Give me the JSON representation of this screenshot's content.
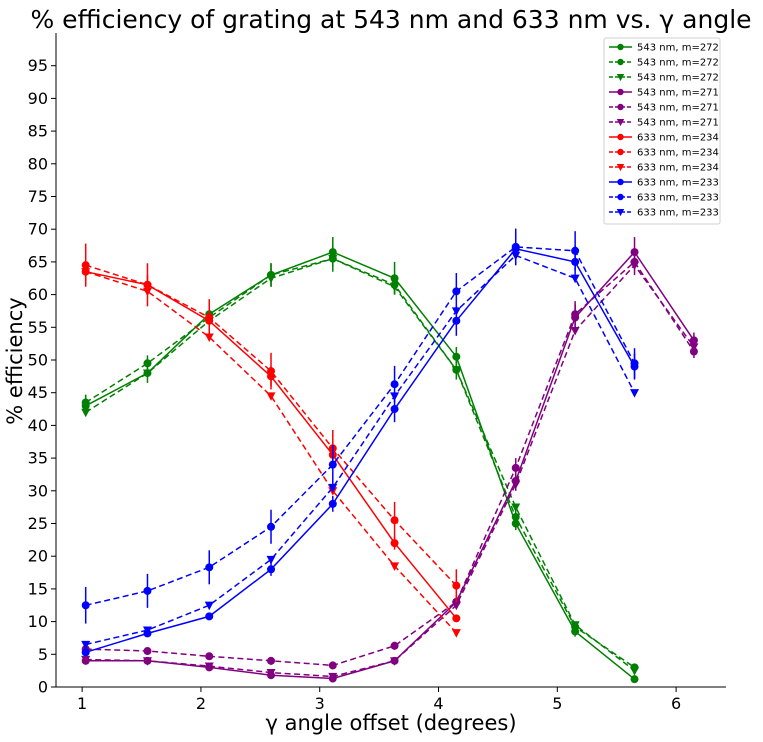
{
  "chart_data": {
    "type": "line",
    "title": "% efficiency  of grating at 543 nm and 633 nm vs. γ angle",
    "xlabel": "γ angle offset (degrees)",
    "ylabel": "% efficiency",
    "xlim": [
      0.78,
      6.42
    ],
    "ylim": [
      0,
      100
    ],
    "xticks": [
      1,
      2,
      3,
      4,
      5,
      6
    ],
    "yticks": [
      0,
      5,
      10,
      15,
      20,
      25,
      30,
      35,
      40,
      45,
      50,
      55,
      60,
      65,
      70,
      75,
      80,
      85,
      90,
      95
    ],
    "grid": false,
    "legend_position": "top-right",
    "series": [
      {
        "name": "543 nm, m=272",
        "color": "#008000",
        "dash": "solid",
        "marker": "circle",
        "x": [
          1.03,
          1.55,
          2.07,
          2.59,
          3.11,
          3.63,
          4.15,
          4.65,
          5.15,
          5.65
        ],
        "y": [
          43,
          48,
          57,
          63,
          66.5,
          62.5,
          50.5,
          25,
          8.5,
          1.2
        ],
        "err": [
          1.5,
          1.5,
          1.5,
          1.8,
          2.3,
          2.5,
          1.5,
          1,
          0.8,
          0.5
        ]
      },
      {
        "name": "543 nm, m=272",
        "color": "#008000",
        "dash": "dashed",
        "marker": "circle",
        "x": [
          1.03,
          1.55,
          2.07,
          2.59,
          3.11,
          3.63,
          4.15,
          4.65,
          5.15,
          5.65
        ],
        "y": [
          43.5,
          49.5,
          56.5,
          63,
          65.5,
          61.5,
          48.5,
          26,
          9.2,
          3
        ],
        "err": [
          1.2,
          1.2,
          1.5,
          1.8,
          2,
          1.5,
          1.5,
          1,
          0.8,
          0.5
        ]
      },
      {
        "name": "543 nm, m=272",
        "color": "#008000",
        "dash": "dashed",
        "marker": "triangle",
        "x": [
          1.03,
          1.55,
          2.07,
          2.59,
          3.11,
          3.63,
          4.15,
          4.65,
          5.15,
          5.65
        ],
        "y": [
          42,
          48,
          56,
          62.5,
          65.5,
          61.2,
          48.5,
          27.5,
          9.5,
          2.5
        ],
        "err": [
          0,
          0,
          0,
          0,
          0,
          0,
          0,
          0,
          0,
          0
        ]
      },
      {
        "name": "543 nm, m=271",
        "color": "#800080",
        "dash": "solid",
        "marker": "circle",
        "x": [
          1.03,
          1.55,
          2.07,
          2.59,
          3.11,
          3.63,
          4.15,
          4.65,
          5.15,
          5.65,
          6.15
        ],
        "y": [
          4,
          4,
          3,
          1.8,
          1.3,
          4,
          13,
          31.5,
          56.5,
          66.5,
          53
        ],
        "err": [
          0.5,
          0.5,
          0.5,
          0.5,
          0.5,
          0.5,
          1,
          1.5,
          2,
          2.3,
          1.2
        ]
      },
      {
        "name": "543 nm, m=271",
        "color": "#800080",
        "dash": "dashed",
        "marker": "circle",
        "x": [
          1.03,
          1.55,
          2.07,
          2.59,
          3.11,
          3.63,
          4.15,
          4.65,
          5.15,
          5.65,
          6.15
        ],
        "y": [
          5.8,
          5.5,
          4.7,
          4,
          3.3,
          6.3,
          13,
          33.5,
          57,
          65,
          51.3
        ],
        "err": [
          0.5,
          0.5,
          0.5,
          0.6,
          0.6,
          0.6,
          1,
          1.5,
          2,
          2,
          1
        ]
      },
      {
        "name": "543 nm, m=271",
        "color": "#800080",
        "dash": "dashed",
        "marker": "triangle",
        "x": [
          1.03,
          1.55,
          2.07,
          2.59,
          3.11,
          3.63,
          4.15,
          4.65,
          5.15,
          5.65,
          6.15
        ],
        "y": [
          4.2,
          4,
          3.2,
          2.2,
          1.6,
          4,
          12.5,
          31,
          54.5,
          64.5,
          52
        ],
        "err": [
          0,
          0,
          0,
          0,
          0,
          0,
          0,
          0,
          0,
          0,
          0
        ]
      },
      {
        "name": "633 nm, m=234",
        "color": "#ff0000",
        "dash": "solid",
        "marker": "circle",
        "x": [
          1.03,
          1.55,
          2.07,
          2.59,
          3.11,
          3.63,
          4.15
        ],
        "y": [
          63.5,
          61.5,
          56,
          47.5,
          35.5,
          22,
          10.5
        ],
        "err": [
          1.5,
          1.5,
          1.5,
          1.5,
          1.5,
          1,
          0.5
        ]
      },
      {
        "name": "633 nm, m=234",
        "color": "#ff0000",
        "dash": "dashed",
        "marker": "circle",
        "x": [
          1.03,
          1.55,
          2.07,
          2.59,
          3.11,
          3.63,
          4.15
        ],
        "y": [
          64.5,
          61.5,
          56.5,
          48.3,
          36.5,
          25.5,
          15.5
        ],
        "err": [
          3.3,
          3.3,
          2.8,
          2.8,
          2.8,
          2.8,
          2.5
        ]
      },
      {
        "name": "633 nm, m=234",
        "color": "#ff0000",
        "dash": "dashed",
        "marker": "triangle",
        "x": [
          1.03,
          1.55,
          2.07,
          2.59,
          3.11,
          3.63,
          4.15
        ],
        "y": [
          63.5,
          60.5,
          53.5,
          44.5,
          30,
          18.5,
          8.3
        ],
        "err": [
          0,
          0,
          0,
          0,
          0,
          0,
          0
        ]
      },
      {
        "name": "633 nm, m=233",
        "color": "#0000ff",
        "dash": "solid",
        "marker": "circle",
        "x": [
          1.03,
          1.55,
          2.07,
          2.59,
          3.11,
          3.63,
          4.15,
          4.65,
          5.15,
          5.65
        ],
        "y": [
          5.3,
          8.2,
          10.8,
          18,
          28,
          42.5,
          56,
          67,
          65,
          49
        ],
        "err": [
          0.5,
          0.5,
          0.5,
          1,
          1.2,
          2,
          2.3,
          2.5,
          2.5,
          2
        ]
      },
      {
        "name": "633 nm, m=233",
        "color": "#0000ff",
        "dash": "dashed",
        "marker": "circle",
        "x": [
          1.03,
          1.55,
          2.07,
          2.59,
          3.11,
          3.63,
          4.15,
          4.65,
          5.15,
          5.65
        ],
        "y": [
          12.5,
          14.7,
          18.3,
          24.5,
          34,
          46.3,
          60.5,
          67.3,
          66.7,
          49.5
        ],
        "err": [
          2.8,
          2.6,
          2.6,
          2.6,
          3,
          2.8,
          2.8,
          2.8,
          3,
          2.3
        ]
      },
      {
        "name": "633 nm, m=233",
        "color": "#0000ff",
        "dash": "dashed",
        "marker": "triangle",
        "x": [
          1.03,
          1.55,
          2.07,
          2.59,
          3.11,
          3.63,
          4.15,
          4.65,
          5.15,
          5.65
        ],
        "y": [
          6.5,
          8.7,
          12.5,
          19.5,
          30.5,
          44.5,
          57.5,
          66,
          62.5,
          45
        ],
        "err": [
          0,
          0,
          0,
          0,
          0,
          0,
          0,
          0,
          0,
          0
        ]
      }
    ]
  }
}
